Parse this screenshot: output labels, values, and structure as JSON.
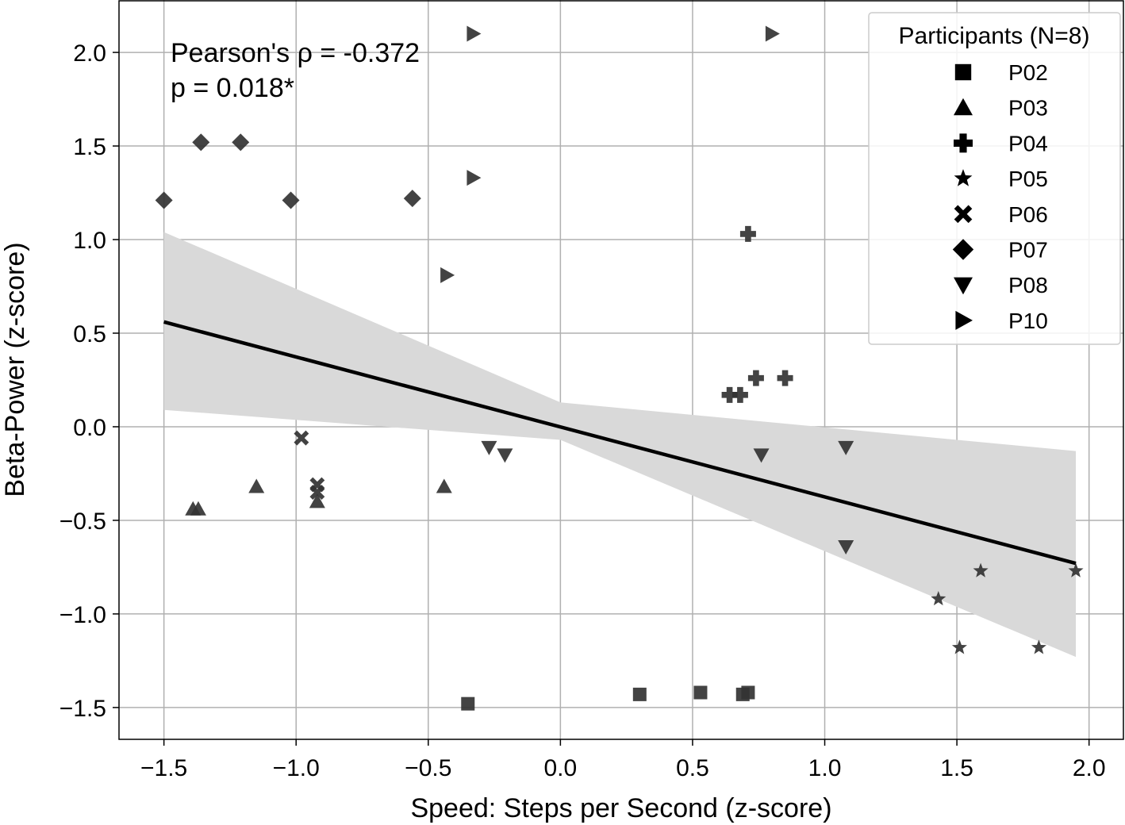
{
  "chart_data": {
    "type": "scatter",
    "title": "",
    "xlabel": "Speed: Steps per Second (z-score)",
    "ylabel": "Beta-Power (z-score)",
    "xlim": [
      -1.67,
      2.13
    ],
    "ylim": [
      -1.67,
      2.28
    ],
    "xticks": [
      -1.5,
      -1.0,
      -0.5,
      0.0,
      0.5,
      1.0,
      1.5,
      2.0
    ],
    "xtick_labels": [
      "−1.5",
      "−1.0",
      "−0.5",
      "0.0",
      "0.5",
      "1.0",
      "1.5",
      "2.0"
    ],
    "yticks": [
      -1.5,
      -1.0,
      -0.5,
      0.0,
      0.5,
      1.0,
      1.5,
      2.0
    ],
    "ytick_labels": [
      "−1.5",
      "−1.0",
      "−0.5",
      "0.0",
      "0.5",
      "1.0",
      "1.5",
      "2.0"
    ],
    "grid": true,
    "annotation": {
      "line1": "Pearson's ρ = -0.372",
      "line2": "p = 0.018*"
    },
    "legend": {
      "title": "Participants (N=8)",
      "position": "top-right"
    },
    "regression": {
      "x": [
        -1.5,
        1.95
      ],
      "y": [
        0.56,
        -0.73
      ],
      "ci_x": [
        -1.5,
        0.0,
        1.95
      ],
      "ci_upper": [
        1.04,
        0.13,
        -0.13
      ],
      "ci_lower": [
        0.09,
        -0.07,
        -1.23
      ]
    },
    "series": [
      {
        "name": "P02",
        "marker": "square",
        "points": [
          [
            -0.35,
            -1.48
          ],
          [
            0.3,
            -1.43
          ],
          [
            0.53,
            -1.42
          ],
          [
            0.69,
            -1.43
          ],
          [
            0.71,
            -1.42
          ]
        ]
      },
      {
        "name": "P03",
        "marker": "triangle-up",
        "points": [
          [
            -1.39,
            -0.44
          ],
          [
            -1.37,
            -0.44
          ],
          [
            -1.15,
            -0.32
          ],
          [
            -0.92,
            -0.4
          ],
          [
            -0.44,
            -0.32
          ]
        ]
      },
      {
        "name": "P04",
        "marker": "plus",
        "points": [
          [
            0.64,
            0.17
          ],
          [
            0.68,
            0.17
          ],
          [
            0.71,
            1.03
          ],
          [
            0.74,
            0.26
          ],
          [
            0.85,
            0.26
          ]
        ]
      },
      {
        "name": "P05",
        "marker": "star",
        "points": [
          [
            1.43,
            -0.92
          ],
          [
            1.51,
            -1.18
          ],
          [
            1.59,
            -0.77
          ],
          [
            1.81,
            -1.18
          ],
          [
            1.95,
            -0.77
          ]
        ]
      },
      {
        "name": "P06",
        "marker": "x",
        "points": [
          [
            -0.98,
            -0.06
          ],
          [
            -0.92,
            -0.31
          ],
          [
            -0.92,
            -0.35
          ]
        ]
      },
      {
        "name": "P07",
        "marker": "diamond",
        "points": [
          [
            -1.5,
            1.21
          ],
          [
            -1.36,
            1.52
          ],
          [
            -1.21,
            1.52
          ],
          [
            -1.02,
            1.21
          ],
          [
            -0.56,
            1.22
          ]
        ]
      },
      {
        "name": "P08",
        "marker": "triangle-down",
        "points": [
          [
            -0.27,
            -0.11
          ],
          [
            -0.21,
            -0.15
          ],
          [
            0.76,
            -0.15
          ],
          [
            1.08,
            -0.11
          ],
          [
            1.08,
            -0.64
          ]
        ]
      },
      {
        "name": "P10",
        "marker": "triangle-right",
        "points": [
          [
            -0.43,
            0.81
          ],
          [
            -0.33,
            1.33
          ],
          [
            -0.33,
            2.1
          ],
          [
            0.8,
            2.1
          ]
        ]
      }
    ]
  }
}
